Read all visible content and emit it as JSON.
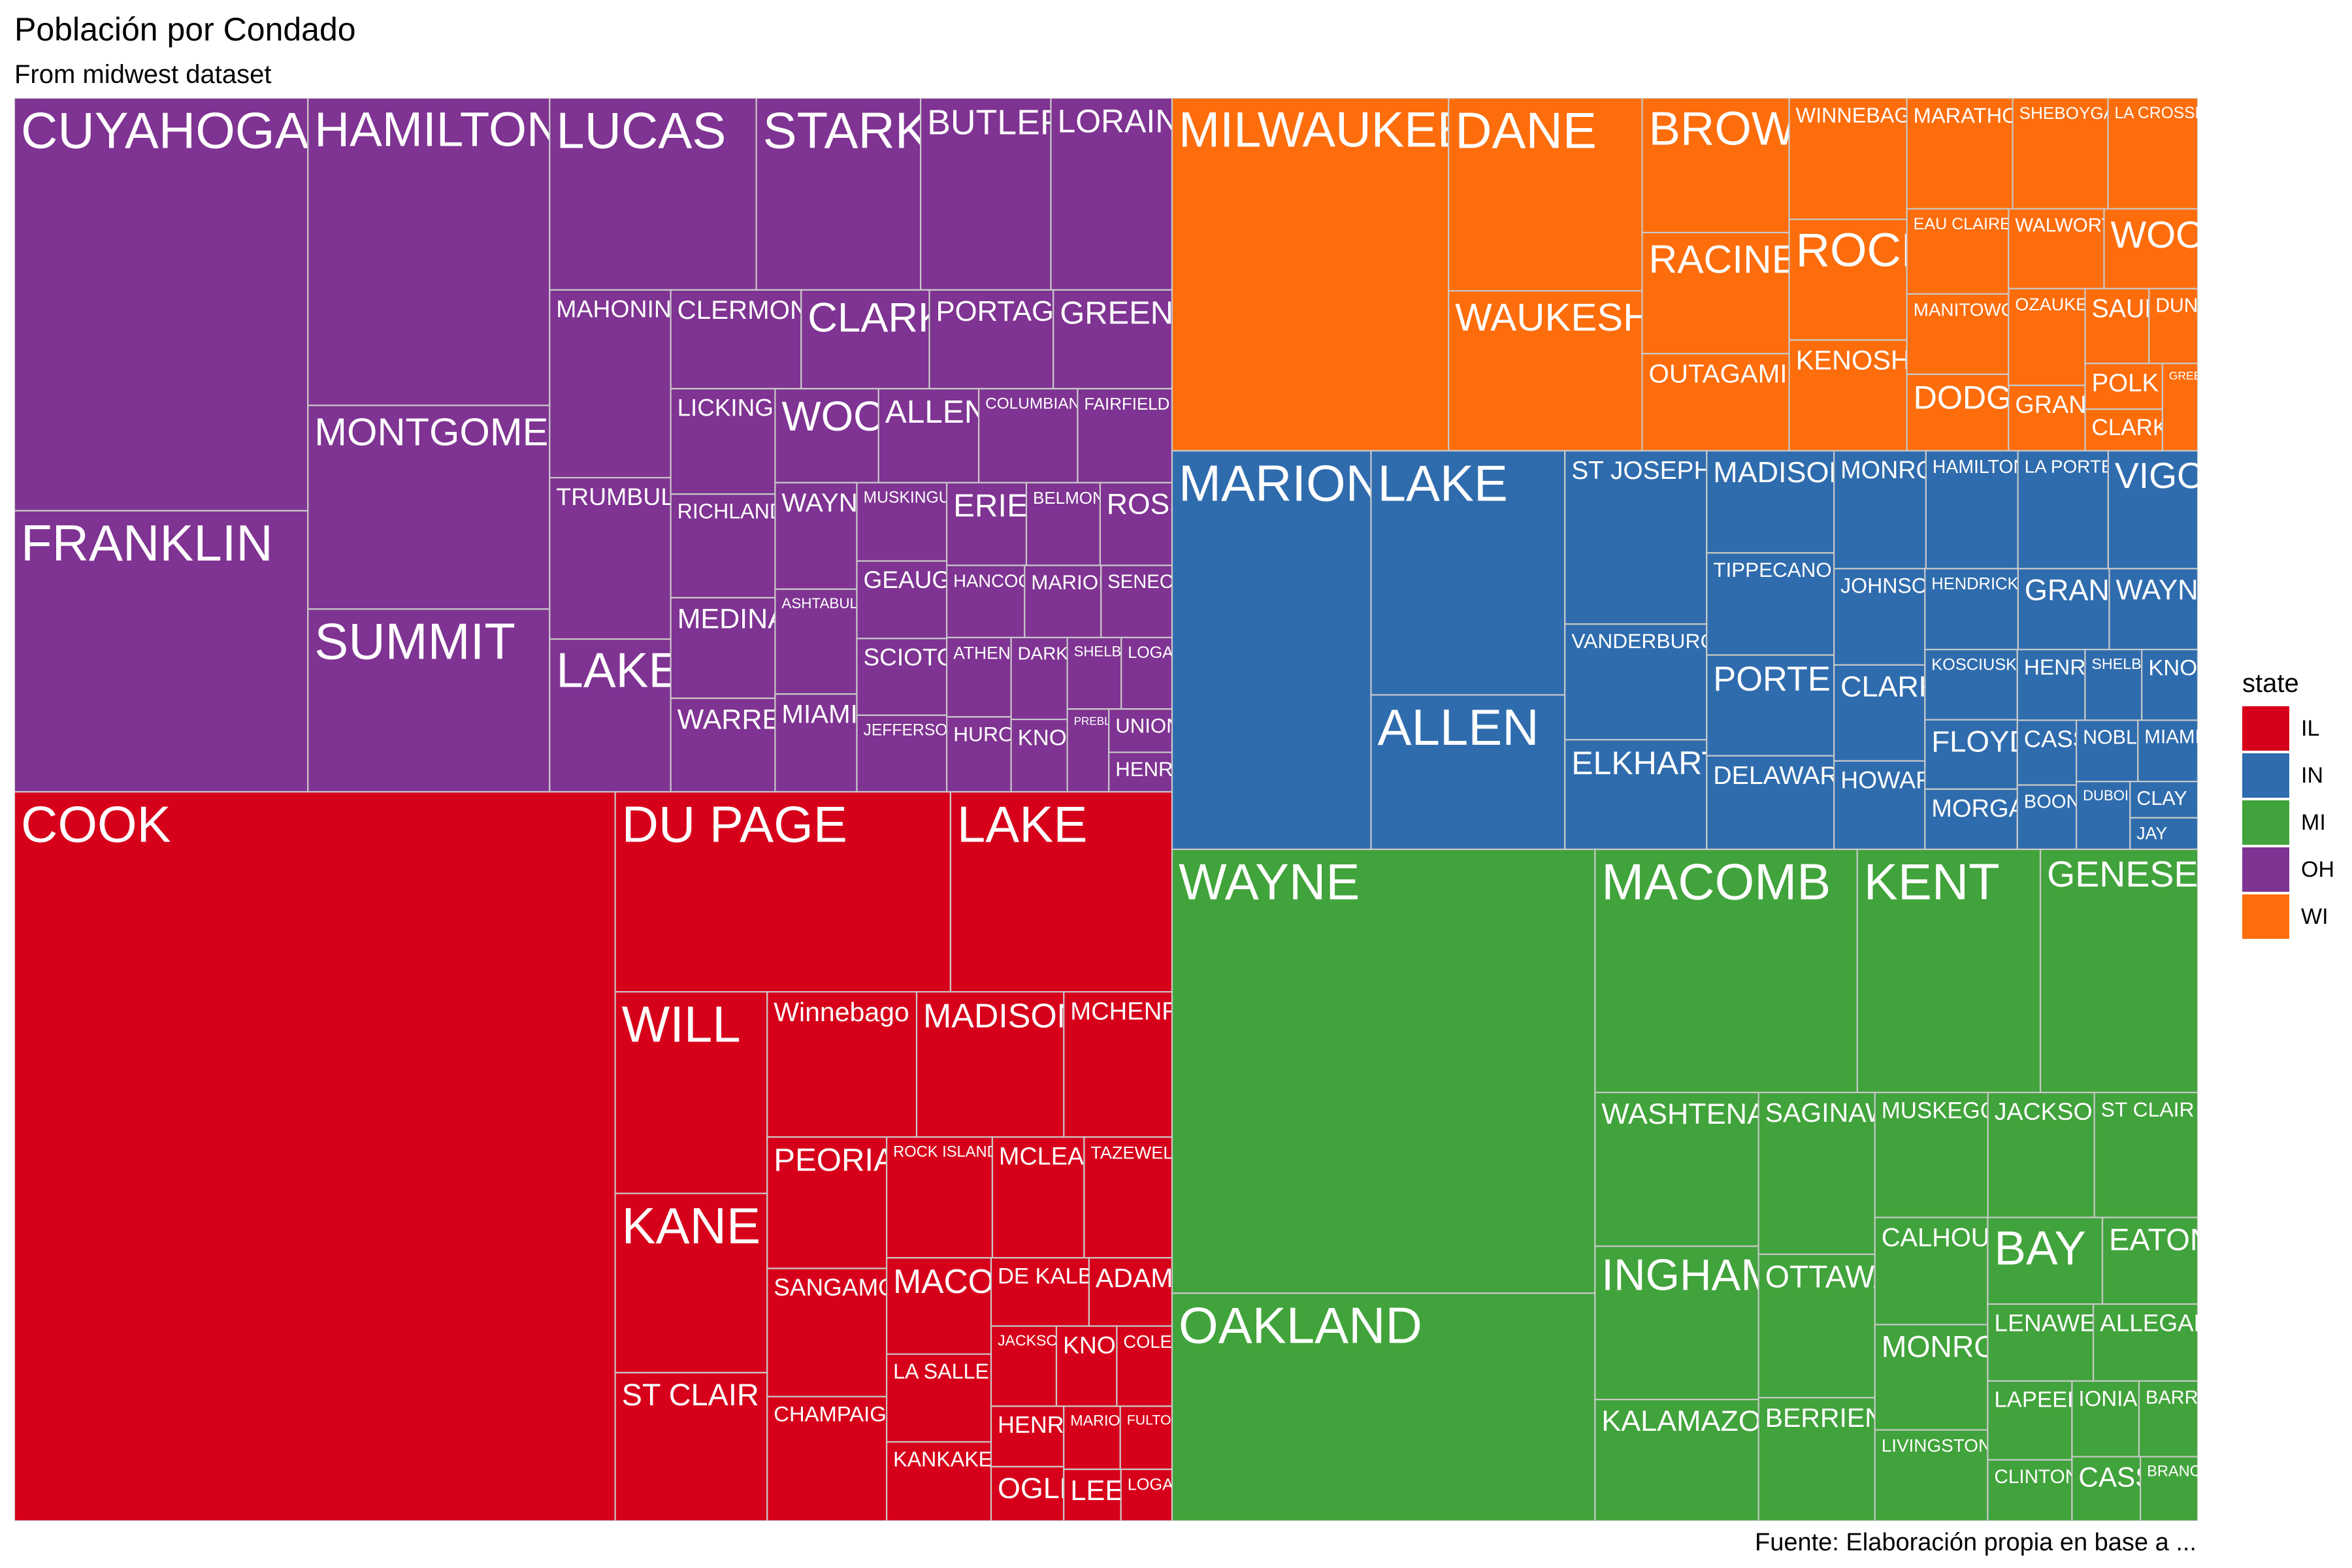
{
  "chart_data": {
    "type": "treemap",
    "title": "Población por Condado",
    "subtitle": "From midwest dataset",
    "caption": "Fuente: Elaboración propia en base a ...",
    "legend": {
      "title": "state",
      "placement": "right",
      "entries": [
        {
          "label": "IL",
          "color": "#d7001a"
        },
        {
          "label": "IN",
          "color": "#2f6cae"
        },
        {
          "label": "MI",
          "color": "#41a33b"
        },
        {
          "label": "OH",
          "color": "#7f3392"
        },
        {
          "label": "WI",
          "color": "#fd6d0c"
        }
      ]
    },
    "groups": [
      {
        "state": "IL",
        "color": "#d7001a",
        "counties": [
          {
            "name": "COOK",
            "value": 5105067
          },
          {
            "name": "DU PAGE",
            "value": 781666
          },
          {
            "name": "LAKE",
            "value": 516418
          },
          {
            "name": "WILL",
            "value": 357313
          },
          {
            "name": "KANE",
            "value": 317471
          },
          {
            "name": "ST CLAIR",
            "value": 262852
          },
          {
            "name": "Winnebago",
            "value": 252913
          },
          {
            "name": "MADISON",
            "value": 249238
          },
          {
            "name": "MCHENRY",
            "value": 183241
          },
          {
            "name": "PEORIA",
            "value": 182827
          },
          {
            "name": "SANGAMON",
            "value": 178386
          },
          {
            "name": "CHAMPAIGN",
            "value": 173025
          },
          {
            "name": "ROCK ISLAND",
            "value": 148723
          },
          {
            "name": "MCLEAN",
            "value": 129180
          },
          {
            "name": "TAZEWELL",
            "value": 123692
          },
          {
            "name": "MACON",
            "value": 117206
          },
          {
            "name": "LA SALLE",
            "value": 106913
          },
          {
            "name": "KANKAKEE",
            "value": 96255
          },
          {
            "name": "DE KALB",
            "value": 77932
          },
          {
            "name": "ADAMS",
            "value": 66090
          },
          {
            "name": "KNOX",
            "value": 56393
          },
          {
            "name": "COLES",
            "value": 51644
          },
          {
            "name": "HENRY",
            "value": 51159
          },
          {
            "name": "OGLE",
            "value": 45957
          },
          {
            "name": "JACKSON",
            "value": 61067
          },
          {
            "name": "MARION",
            "value": 41561
          },
          {
            "name": "FULTON",
            "value": 38080
          },
          {
            "name": "LEE",
            "value": 34392
          },
          {
            "name": "LOGAN",
            "value": 30798
          }
        ]
      },
      {
        "state": "IN",
        "color": "#2f6cae",
        "counties": [
          {
            "name": "MARION",
            "value": 797159
          },
          {
            "name": "LAKE",
            "value": 475594
          },
          {
            "name": "ALLEN",
            "value": 300836
          },
          {
            "name": "ST JOSEPH",
            "value": 247052
          },
          {
            "name": "ELKHART",
            "value": 156198
          },
          {
            "name": "VANDERBURGH",
            "value": 165058
          },
          {
            "name": "PORTER",
            "value": 128932
          },
          {
            "name": "TIPPECANOE",
            "value": 130598
          },
          {
            "name": "MADISON",
            "value": 130669
          },
          {
            "name": "DELAWARE",
            "value": 119659
          },
          {
            "name": "MONROE",
            "value": 108978
          },
          {
            "name": "VIGO",
            "value": 106107
          },
          {
            "name": "HAMILTON",
            "value": 108936
          },
          {
            "name": "LA PORTE",
            "value": 107066
          },
          {
            "name": "HOWARD",
            "value": 80827
          },
          {
            "name": "HENDRICKS",
            "value": 75717
          },
          {
            "name": "JOHNSON",
            "value": 88109
          },
          {
            "name": "CLARK",
            "value": 87777
          },
          {
            "name": "WAYNE",
            "value": 71951
          },
          {
            "name": "GRANT",
            "value": 74169
          },
          {
            "name": "FLOYD",
            "value": 64404
          },
          {
            "name": "KOSCIUSKO",
            "value": 65294
          },
          {
            "name": "NOBLE",
            "value": 37877
          },
          {
            "name": "DUBOIS",
            "value": 36616
          },
          {
            "name": "MIAMI",
            "value": 36897
          },
          {
            "name": "CLAY",
            "value": 24705
          },
          {
            "name": "JAY",
            "value": 21512
          },
          {
            "name": "SHELBY",
            "value": 40307
          },
          {
            "name": "KNOX",
            "value": 39884
          },
          {
            "name": "CASS",
            "value": 38413
          },
          {
            "name": "BOONE",
            "value": 38147
          },
          {
            "name": "MORGAN",
            "value": 55920
          },
          {
            "name": "HENRY",
            "value": 48139
          }
        ]
      },
      {
        "state": "MI",
        "color": "#41a33b",
        "counties": [
          {
            "name": "WAYNE",
            "value": 2111687
          },
          {
            "name": "OAKLAND",
            "value": 1083592
          },
          {
            "name": "MACOMB",
            "value": 717400
          },
          {
            "name": "KENT",
            "value": 500631
          },
          {
            "name": "GENESEE",
            "value": 430459
          },
          {
            "name": "INGHAM",
            "value": 281912
          },
          {
            "name": "WASHTENAW",
            "value": 282937
          },
          {
            "name": "KALAMAZOO",
            "value": 223411
          },
          {
            "name": "SAGINAW",
            "value": 211946
          },
          {
            "name": "OTTAWA",
            "value": 187768
          },
          {
            "name": "BERRIEN",
            "value": 161378
          },
          {
            "name": "MUSKEGON",
            "value": 158983
          },
          {
            "name": "JACKSON",
            "value": 149756
          },
          {
            "name": "CALHOUN",
            "value": 135982
          },
          {
            "name": "MONROE",
            "value": 133600
          },
          {
            "name": "ST CLAIR",
            "value": 145607
          },
          {
            "name": "LIVINGSTON",
            "value": 115645
          },
          {
            "name": "BAY",
            "value": 111723
          },
          {
            "name": "EATON",
            "value": 92879
          },
          {
            "name": "ALLEGAN",
            "value": 90509
          },
          {
            "name": "LENAWEE",
            "value": 91476
          },
          {
            "name": "LAPEER",
            "value": 74768
          },
          {
            "name": "CLINTON",
            "value": 57883
          },
          {
            "name": "IONIA",
            "value": 57024
          },
          {
            "name": "BARRY",
            "value": 50057
          },
          {
            "name": "CASS",
            "value": 49477
          },
          {
            "name": "BRANCH",
            "value": 41502
          }
        ]
      },
      {
        "state": "OH",
        "color": "#7f3392",
        "counties": [
          {
            "name": "CUYAHOGA",
            "value": 1412140
          },
          {
            "name": "FRANKLIN",
            "value": 961437
          },
          {
            "name": "HAMILTON",
            "value": 866228
          },
          {
            "name": "MONTGOMERY",
            "value": 573809
          },
          {
            "name": "SUMMIT",
            "value": 514990
          },
          {
            "name": "LUCAS",
            "value": 462361
          },
          {
            "name": "STARK",
            "value": 367585
          },
          {
            "name": "BUTLER",
            "value": 291479
          },
          {
            "name": "LORAIN",
            "value": 271126
          },
          {
            "name": "MAHONING",
            "value": 264806
          },
          {
            "name": "LAKE",
            "value": 215499
          },
          {
            "name": "TRUMBULL",
            "value": 227813
          },
          {
            "name": "CLARK",
            "value": 147548
          },
          {
            "name": "CLERMONT",
            "value": 150187
          },
          {
            "name": "PORTAGE",
            "value": 142585
          },
          {
            "name": "GREENE",
            "value": 136731
          },
          {
            "name": "LICKING",
            "value": 128300
          },
          {
            "name": "RICHLAND",
            "value": 126137
          },
          {
            "name": "MEDINA",
            "value": 122354
          },
          {
            "name": "WARREN",
            "value": 113909
          },
          {
            "name": "WOOD",
            "value": 113269
          },
          {
            "name": "ALLEN",
            "value": 109755
          },
          {
            "name": "COLUMBIANA",
            "value": 108276
          },
          {
            "name": "FAIRFIELD",
            "value": 103461
          },
          {
            "name": "WAYNE",
            "value": 101461
          },
          {
            "name": "ASHTABULA",
            "value": 99821
          },
          {
            "name": "MIAMI",
            "value": 93182
          },
          {
            "name": "MUSKINGUM",
            "value": 82068
          },
          {
            "name": "GEAUGA",
            "value": 81129
          },
          {
            "name": "SCIOTO",
            "value": 80327
          },
          {
            "name": "JEFFERSON",
            "value": 80298
          },
          {
            "name": "ERIE",
            "value": 76779
          },
          {
            "name": "ROSS",
            "value": 69330
          },
          {
            "name": "BELMONT",
            "value": 71074
          },
          {
            "name": "MARION",
            "value": 64274
          },
          {
            "name": "SENECA",
            "value": 59733
          },
          {
            "name": "HANCOCK",
            "value": 65536
          },
          {
            "name": "ATHENS",
            "value": 59549
          },
          {
            "name": "HURON",
            "value": 56240
          },
          {
            "name": "DARKE",
            "value": 53619
          },
          {
            "name": "KNOX",
            "value": 47473
          },
          {
            "name": "SHELBY",
            "value": 44915
          },
          {
            "name": "LOGAN",
            "value": 42310
          },
          {
            "name": "PREBLE",
            "value": 40113
          },
          {
            "name": "HENRY",
            "value": 29108
          },
          {
            "name": "UNION",
            "value": 31969
          }
        ]
      },
      {
        "state": "WI",
        "color": "#fd6d0c",
        "counties": [
          {
            "name": "MILWAUKEE",
            "value": 959275
          },
          {
            "name": "DANE",
            "value": 367085
          },
          {
            "name": "WAUKESHA",
            "value": 304715
          },
          {
            "name": "BROWN",
            "value": 194594
          },
          {
            "name": "RACINE",
            "value": 175034
          },
          {
            "name": "WINNEBAGO",
            "value": 140320
          },
          {
            "name": "OUTAGAMIE",
            "value": 140510
          },
          {
            "name": "ROCK",
            "value": 139510
          },
          {
            "name": "KENOSHA",
            "value": 128181
          },
          {
            "name": "MARATHON",
            "value": 115400
          },
          {
            "name": "LA CROSSE",
            "value": 97904
          },
          {
            "name": "SHEBOYGAN",
            "value": 103877
          },
          {
            "name": "EAU CLAIRE",
            "value": 85183
          },
          {
            "name": "WALWORTH",
            "value": 75000
          },
          {
            "name": "WOOD",
            "value": 73605
          },
          {
            "name": "OZAUKEE",
            "value": 72831
          },
          {
            "name": "MANITOWOC",
            "value": 80421
          },
          {
            "name": "DODGE",
            "value": 76559
          },
          {
            "name": "SAUK",
            "value": 46975
          },
          {
            "name": "POLK",
            "value": 34773
          },
          {
            "name": "GRANT",
            "value": 49264
          },
          {
            "name": "CLARK",
            "value": 31647
          },
          {
            "name": "GREEN",
            "value": 30339
          },
          {
            "name": "DUNN",
            "value": 35909
          }
        ]
      }
    ]
  }
}
